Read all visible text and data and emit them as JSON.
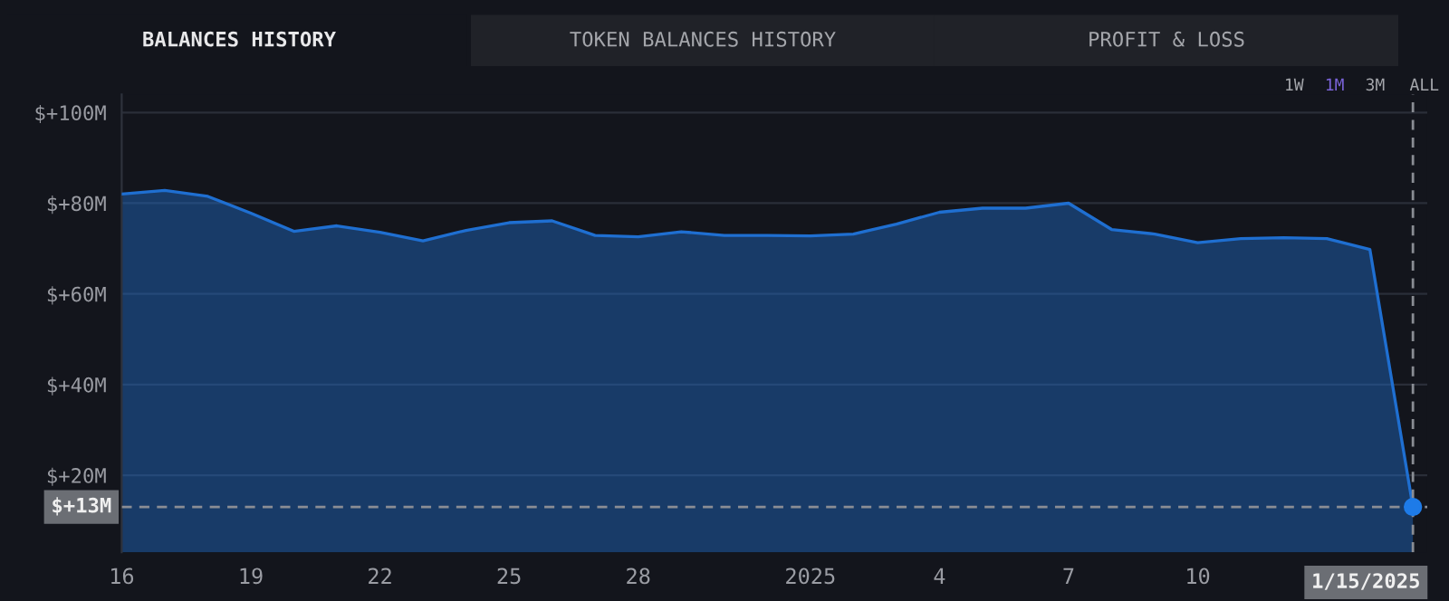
{
  "chart_data": {
    "type": "area",
    "annotations": [
      "BALANCES HISTORY",
      "TOKEN BALANCES HISTORY",
      "PROFIT & LOSS",
      "1W",
      "1M",
      "3M",
      "ALL"
    ],
    "x": [
      "2024-12-16",
      "2024-12-17",
      "2024-12-18",
      "2024-12-19",
      "2024-12-20",
      "2024-12-21",
      "2024-12-22",
      "2024-12-23",
      "2024-12-24",
      "2024-12-25",
      "2024-12-26",
      "2024-12-27",
      "2024-12-28",
      "2024-12-29",
      "2024-12-30",
      "2024-12-31",
      "2025-01-01",
      "2025-01-02",
      "2025-01-03",
      "2025-01-04",
      "2025-01-05",
      "2025-01-06",
      "2025-01-07",
      "2025-01-08",
      "2025-01-09",
      "2025-01-10",
      "2025-01-11",
      "2025-01-12",
      "2025-01-13",
      "2025-01-14",
      "2025-01-15"
    ],
    "series": [
      {
        "color": "#1f6fd1",
        "values": [
          82.0,
          82.8,
          81.5,
          77.8,
          73.8,
          75.0,
          73.6,
          71.7,
          74.0,
          75.7,
          76.1,
          72.9,
          72.6,
          73.7,
          72.9,
          72.9,
          72.8,
          73.2,
          75.4,
          78.0,
          78.9,
          78.9,
          80.0,
          74.2,
          73.2,
          71.3,
          72.2,
          72.4,
          72.2,
          69.8,
          13
        ]
      },
      {
        "type": "scatter",
        "color": "#1e7be8",
        "x": [
          "2025-01-15"
        ],
        "values": [
          13
        ],
        "marker": "circle"
      }
    ],
    "xlim": [
      "2024-12-16",
      "2025-01-15T08:00"
    ],
    "xticks": [
      {
        "value": "2024-12-16",
        "label": "16"
      },
      {
        "value": "2024-12-19",
        "label": "19"
      },
      {
        "value": "2024-12-22",
        "label": "22"
      },
      {
        "value": "2024-12-25",
        "label": "25"
      },
      {
        "value": "2024-12-28",
        "label": "28"
      },
      {
        "value": "2025-01-01",
        "label": "2025"
      },
      {
        "value": "2025-01-04",
        "label": "4"
      },
      {
        "value": "2025-01-07",
        "label": "7"
      },
      {
        "value": "2025-01-10",
        "label": "10"
      }
    ],
    "ylim": [
      3,
      104
    ],
    "yticks": [
      {
        "value": 20,
        "label": "$+20M"
      },
      {
        "value": 40,
        "label": "$+40M"
      },
      {
        "value": 60,
        "label": "$+60M"
      },
      {
        "value": 80,
        "label": "$+80M"
      },
      {
        "value": 100,
        "label": "$+100M"
      }
    ],
    "grid": "y",
    "ref_lines": [
      {
        "axis": "x",
        "value": "2025-01-15",
        "label": "1/15/2025",
        "color": "#8a8d94",
        "line_style": "dashed"
      },
      {
        "axis": "y",
        "value": 13,
        "label": "$+13M",
        "color": "#8a8d94",
        "line_style": "dashed"
      }
    ]
  }
}
